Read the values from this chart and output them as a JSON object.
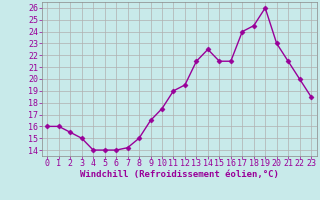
{
  "x": [
    0,
    1,
    2,
    3,
    4,
    5,
    6,
    7,
    8,
    9,
    10,
    11,
    12,
    13,
    14,
    15,
    16,
    17,
    18,
    19,
    20,
    21,
    22,
    23
  ],
  "y": [
    16,
    16,
    15.5,
    15,
    14,
    14,
    14,
    14.2,
    15,
    16.5,
    17.5,
    19,
    19.5,
    21.5,
    22.5,
    21.5,
    21.5,
    24,
    24.5,
    26,
    23,
    21.5,
    20,
    18.5
  ],
  "line_color": "#990099",
  "marker": "D",
  "markersize": 2.5,
  "linewidth": 1,
  "background_color": "#c8eaea",
  "grid_color": "#b0b0b0",
  "xlabel": "Windchill (Refroidissement éolien,°C)",
  "xlabel_fontsize": 6.5,
  "ylabel_ticks": [
    14,
    15,
    16,
    17,
    18,
    19,
    20,
    21,
    22,
    23,
    24,
    25,
    26
  ],
  "xlim": [
    -0.5,
    23.5
  ],
  "ylim": [
    13.5,
    26.5
  ],
  "tick_fontsize": 6,
  "tick_color": "#990099",
  "label_color": "#990099"
}
